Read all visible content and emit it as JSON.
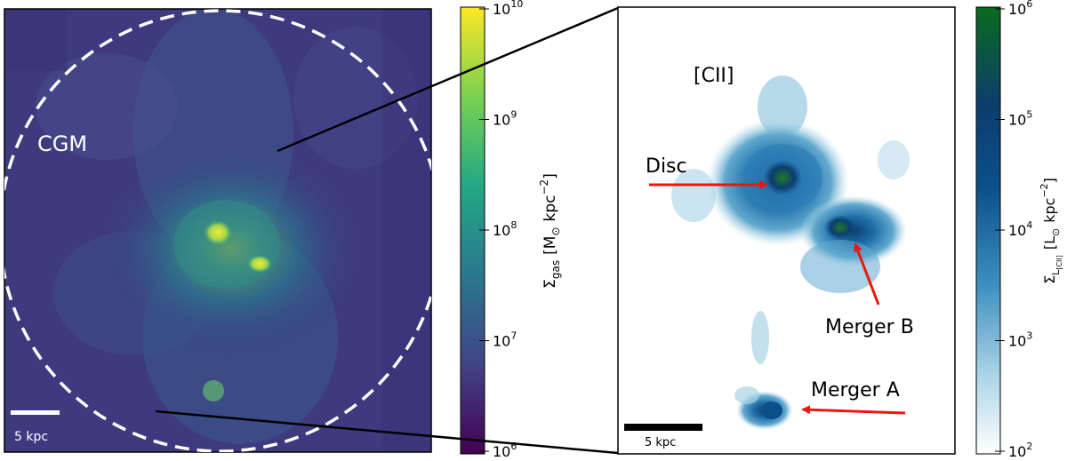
{
  "left_panel": {
    "region_label": "CGM",
    "scalebar_label": "5 kpc"
  },
  "left_colorbar": {
    "label_sym": "Σ",
    "label_sub": "gas",
    "label_unit": "[M",
    "label_unit2": "kpc",
    "label_exp": "−2",
    "label_close": "]",
    "ticks": [
      {
        "base": "10",
        "exp": "10"
      },
      {
        "base": "10",
        "exp": "9"
      },
      {
        "base": "10",
        "exp": "8"
      },
      {
        "base": "10",
        "exp": "7"
      },
      {
        "base": "10",
        "exp": "6"
      }
    ],
    "colors": [
      "#fde725",
      "#7ad151",
      "#22a884",
      "#2a788e",
      "#414487",
      "#440154"
    ]
  },
  "right_panel": {
    "tracer_label": "[CII]",
    "scalebar_label": "5 kpc",
    "annotations": {
      "disc": "Disc",
      "merger_a": "Merger A",
      "merger_b": "Merger B"
    },
    "arrow_color": "#e8170f"
  },
  "right_colorbar": {
    "label_sym": "Σ",
    "label_sub": "L",
    "label_subsub": "[CII]",
    "label_unit": "[L",
    "label_unit2": "kpc",
    "label_exp": "−2",
    "label_close": "]",
    "ticks": [
      {
        "base": "10",
        "exp": "6"
      },
      {
        "base": "10",
        "exp": "5"
      },
      {
        "base": "10",
        "exp": "4"
      },
      {
        "base": "10",
        "exp": "3"
      },
      {
        "base": "10",
        "exp": "2"
      }
    ],
    "colors": [
      "#0a6b1f",
      "#0b3d6e",
      "#0b4f8a",
      "#3b8fbf",
      "#a9d3e6",
      "#ffffff"
    ]
  }
}
